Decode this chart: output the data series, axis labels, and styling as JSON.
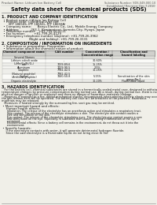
{
  "bg_color": "#f0efe8",
  "header_left": "Product Name: Lithium Ion Battery Cell",
  "header_right": "Substance Number: SDS-049-000-10\nEstablished / Revision: Dec.7,2010",
  "title": "Safety data sheet for chemical products (SDS)",
  "s1_title": "1. PRODUCT AND COMPANY IDENTIFICATION",
  "s1_lines": [
    " • Product name: Lithium Ion Battery Cell",
    " • Product code: Cylindrical-type cell",
    "      (IFP 18650S, IFP 18650L, IFP 18650A)",
    " • Company name:      Banyu Electric Co., Ltd., Mobile Energy Company",
    " • Address:            263-1  Kamimatsuri, Sumoto-City, Hyogo, Japan",
    " • Telephone number:   +81-799-26-4111",
    " • Fax number:         +81-799-26-4129",
    " • Emergency telephone number (daytime): +81-799-26-3962",
    "                           (Night and holiday): +81-799-26-3131"
  ],
  "s2_title": "2. COMPOSITION / INFORMATION ON INGREDIENTS",
  "s2_line1": " • Substance or preparation: Preparation",
  "s2_line2": " • Information about the chemical nature of product:",
  "tbl_h1": [
    "Chemical component name",
    "CAS number",
    "Concentration /\nConcentration range",
    "Classification and\nhazard labeling"
  ],
  "tbl_h2": "Several Names",
  "tbl_rows": [
    [
      "Lithium cobalt oxide\n(LiMn/Co/Ni/O₂)",
      "-",
      "30-60%",
      ""
    ],
    [
      "Iron",
      "7439-89-6",
      "15-25%",
      ""
    ],
    [
      "Aluminum",
      "7429-90-5",
      "2-5%",
      ""
    ],
    [
      "Graphite\n(Natural graphite)\n(Artificial graphite)",
      "7782-42-5\n7782-42-5",
      "10-25%",
      ""
    ],
    [
      "Copper",
      "7440-50-8",
      "5-15%",
      "Sensitization of the skin\ngroup No.2"
    ],
    [
      "Organic electrolyte",
      "-",
      "10-20%",
      "Flammable liquid"
    ]
  ],
  "s3_title": "3. HAZARDS IDENTIFICATION",
  "s3_p1": [
    "   For the battery cell, chemical substances are stored in a hermetically-sealed metal case, designed to withstand",
    "temperature changes by pressure-compensation during normal use. As a result, during normal use, there is no",
    "physical danger of ignition or explosion and there no danger of hazardous materials leakage.",
    "   However, if exposed to a fire, added mechanical shocks, decomposed, when electric-electric shorts may occur,",
    "the gas release vent will be operated. The battery cell case will be breached of fire patterns. Hazardous",
    "materials may be released.",
    "   Moreover, if heated strongly by the surrounding fire, soot gas may be emitted."
  ],
  "s3_b1": " • Most important hazard and effects:",
  "s3_human": "   Human health effects:",
  "s3_human_lines": [
    "      Inhalation: The release of the electrolyte has an anesthesia action and stimulates a respiratory tract.",
    "      Skin contact: The release of the electrolyte stimulates a skin. The electrolyte skin contact causes a",
    "      sore and stimulation on the skin.",
    "      Eye contact: The release of the electrolyte stimulates eyes. The electrolyte eye contact causes a sore",
    "      and stimulation on the eye. Especially, a substance that causes a strong inflammation of the eye is",
    "      contained.",
    "      Environmental effects: Since a battery cell remains in the environment, do not throw out it into the",
    "      environment."
  ],
  "s3_specific": " • Specific hazards:",
  "s3_specific_lines": [
    "    If the electrolyte contacts with water, it will generate detrimental hydrogen fluoride.",
    "    Since the said electrolyte is a flammable liquid, do not bring close to fire."
  ]
}
